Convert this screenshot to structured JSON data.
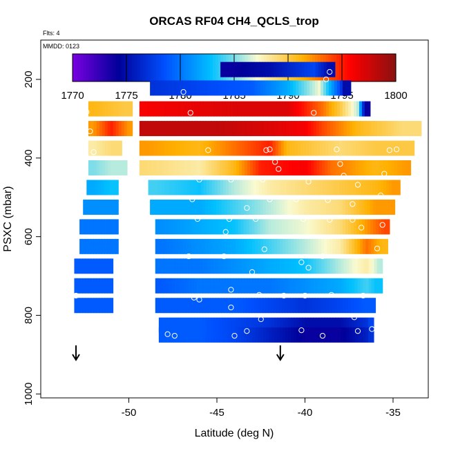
{
  "chart_data": {
    "type": "heatmap",
    "title": "ORCAS RF04 CH4_QCLS_trop",
    "note_flts": "Flts: 4",
    "note_mmdd": "MMDD: 0123",
    "xlabel": "Latitude (deg N)",
    "ylabel": "PSXC (mbar)",
    "xlim": [
      -55,
      -33
    ],
    "ylim": [
      1010,
      100
    ],
    "x_ticks": [
      -50,
      -45,
      -40,
      -35
    ],
    "x_tick_labels": [
      "-50",
      "-45",
      "-40",
      "-35"
    ],
    "y_ticks": [
      200,
      400,
      600,
      800,
      1000
    ],
    "y_tick_labels": [
      "200",
      "400",
      "600",
      "800",
      "1000"
    ],
    "colorbar": {
      "min": 1770,
      "max": 1800,
      "ticks": [
        1770,
        1775,
        1780,
        1785,
        1790,
        1795,
        1800
      ],
      "tick_labels": [
        "1770",
        "1775",
        "1780",
        "1785",
        "1790",
        "1795",
        "1800"
      ],
      "colors": [
        "#7a00e0",
        "#00009a",
        "#0050ff",
        "#00c0ff",
        "#fafad0",
        "#ffb000",
        "#ff0000",
        "#8a1010"
      ]
    },
    "arrows_lat": [
      -53,
      -41.4
    ],
    "rows": [
      {
        "p": 175,
        "segments": [
          [
            -44.2,
            1774
          ],
          [
            -42,
            1775
          ],
          [
            -39.5,
            1778
          ],
          [
            -38.7,
            1775
          ]
        ],
        "x0": -44.8,
        "x1": -38.3
      },
      {
        "p": 222,
        "segments": [
          [
            -48.6,
            1777
          ],
          [
            -46,
            1778
          ],
          [
            -43,
            1779
          ],
          [
            -41,
            1782
          ],
          [
            -39.2,
            1787
          ],
          [
            -38,
            1778
          ],
          [
            -37.8,
            1775
          ]
        ],
        "x0": -48.8,
        "x1": -37.4
      },
      {
        "p": 275,
        "segments": [
          [
            -52,
            1791
          ],
          [
            -50.2,
            1790
          ]
        ],
        "x0": -52.3,
        "x1": -49.8
      },
      {
        "p": 275,
        "segments": [
          [
            -49,
            1796
          ],
          [
            -44,
            1797
          ],
          [
            -41,
            1797
          ],
          [
            -39,
            1793
          ],
          [
            -38,
            1790
          ],
          [
            -37,
            1786
          ],
          [
            -36.6,
            1774
          ]
        ],
        "x0": -49.4,
        "x1": -36.3
      },
      {
        "p": 325,
        "segments": [
          [
            -52,
            1792
          ],
          [
            -51,
            1795
          ],
          [
            -50,
            1792
          ]
        ],
        "x0": -52.3,
        "x1": -49.8
      },
      {
        "p": 325,
        "segments": [
          [
            -49,
            1798
          ],
          [
            -45,
            1798
          ],
          [
            -42,
            1797
          ],
          [
            -40,
            1796
          ],
          [
            -39,
            1794
          ],
          [
            -37,
            1791
          ],
          [
            -34.5,
            1789
          ],
          [
            -33.6,
            1789
          ]
        ],
        "x0": -49.4,
        "x1": -33.4
      },
      {
        "p": 375,
        "segments": [
          [
            -52,
            1788
          ],
          [
            -51,
            1789
          ],
          [
            -50.8,
            1789
          ]
        ],
        "x0": -52.3,
        "x1": -50.4
      },
      {
        "p": 375,
        "segments": [
          [
            -49,
            1792
          ],
          [
            -46,
            1791
          ],
          [
            -44,
            1793
          ],
          [
            -42,
            1795
          ],
          [
            -41,
            1791
          ],
          [
            -38,
            1789
          ],
          [
            -36,
            1790
          ],
          [
            -34,
            1790
          ]
        ],
        "x0": -49.4,
        "x1": -33.8
      },
      {
        "p": 425,
        "segments": [
          [
            -52,
            1785
          ],
          [
            -51,
            1786
          ],
          [
            -50.5,
            1786
          ]
        ],
        "x0": -52.3,
        "x1": -50.1
      },
      {
        "p": 425,
        "segments": [
          [
            -49,
            1789
          ],
          [
            -46,
            1788
          ],
          [
            -44,
            1791
          ],
          [
            -42.5,
            1795
          ],
          [
            -40,
            1796
          ],
          [
            -38.5,
            1793
          ],
          [
            -36,
            1791
          ],
          [
            -34.3,
            1792
          ]
        ],
        "x0": -49.4,
        "x1": -34.0
      },
      {
        "p": 475,
        "segments": [
          [
            -52,
            1782
          ],
          [
            -51,
            1783
          ],
          [
            -50.8,
            1783
          ]
        ],
        "x0": -52.4,
        "x1": -50.6
      },
      {
        "p": 475,
        "segments": [
          [
            -48.5,
            1784
          ],
          [
            -46,
            1783
          ],
          [
            -44,
            1786
          ],
          [
            -42,
            1788
          ],
          [
            -40,
            1789
          ],
          [
            -38,
            1790
          ],
          [
            -36,
            1791
          ],
          [
            -35,
            1792
          ]
        ],
        "x0": -48.9,
        "x1": -34.6
      },
      {
        "p": 525,
        "segments": [
          [
            -52,
            1781
          ],
          [
            -51,
            1781
          ],
          [
            -50.8,
            1781
          ]
        ],
        "x0": -52.6,
        "x1": -50.6
      },
      {
        "p": 525,
        "segments": [
          [
            -48.5,
            1782
          ],
          [
            -46,
            1782
          ],
          [
            -44,
            1784
          ],
          [
            -42,
            1786
          ],
          [
            -40,
            1788
          ],
          [
            -38,
            1789
          ],
          [
            -36,
            1792
          ],
          [
            -35.2,
            1792
          ]
        ],
        "x0": -48.8,
        "x1": -34.9
      },
      {
        "p": 575,
        "segments": [
          [
            -52,
            1780
          ],
          [
            -51,
            1780
          ],
          [
            -50.8,
            1780
          ]
        ],
        "x0": -52.8,
        "x1": -50.6
      },
      {
        "p": 575,
        "segments": [
          [
            -48,
            1781
          ],
          [
            -46,
            1782
          ],
          [
            -44,
            1783
          ],
          [
            -42,
            1786
          ],
          [
            -40,
            1787
          ],
          [
            -38,
            1789
          ],
          [
            -36,
            1793
          ],
          [
            -35.5,
            1794
          ]
        ],
        "x0": -48.5,
        "x1": -35.2
      },
      {
        "p": 625,
        "segments": [
          [
            -52,
            1780
          ],
          [
            -51,
            1780
          ],
          [
            -50.8,
            1780
          ]
        ],
        "x0": -52.8,
        "x1": -50.6
      },
      {
        "p": 625,
        "segments": [
          [
            -48,
            1780
          ],
          [
            -46,
            1781
          ],
          [
            -44,
            1782
          ],
          [
            -42,
            1784
          ],
          [
            -40,
            1786
          ],
          [
            -38,
            1788
          ],
          [
            -36.5,
            1793
          ],
          [
            -35.6,
            1791
          ]
        ],
        "x0": -48.5,
        "x1": -35.3
      },
      {
        "p": 675,
        "segments": [
          [
            -52.5,
            1779
          ],
          [
            -51.5,
            1779
          ],
          [
            -51,
            1779
          ]
        ],
        "x0": -53.1,
        "x1": -50.9
      },
      {
        "p": 675,
        "segments": [
          [
            -48,
            1780
          ],
          [
            -46,
            1780
          ],
          [
            -44,
            1781
          ],
          [
            -42,
            1782
          ],
          [
            -40,
            1783
          ],
          [
            -38,
            1786
          ],
          [
            -36.5,
            1788
          ],
          [
            -35.8,
            1786
          ]
        ],
        "x0": -48.5,
        "x1": -35.6
      },
      {
        "p": 725,
        "segments": [
          [
            -52.5,
            1779
          ],
          [
            -51.5,
            1779
          ],
          [
            -51,
            1779
          ]
        ],
        "x0": -53.1,
        "x1": -50.9
      },
      {
        "p": 725,
        "segments": [
          [
            -48,
            1779
          ],
          [
            -46,
            1780
          ],
          [
            -44,
            1780
          ],
          [
            -42,
            1780
          ],
          [
            -40,
            1781
          ],
          [
            -38,
            1782
          ],
          [
            -36.5,
            1784
          ],
          [
            -36,
            1783
          ]
        ],
        "x0": -48.5,
        "x1": -35.6
      },
      {
        "p": 775,
        "segments": [
          [
            -52.5,
            1779
          ],
          [
            -51.5,
            1779
          ],
          [
            -51,
            1779
          ]
        ],
        "x0": -53.1,
        "x1": -50.9
      },
      {
        "p": 775,
        "segments": [
          [
            -48,
            1779
          ],
          [
            -46,
            1779
          ],
          [
            -44,
            1779
          ],
          [
            -42,
            1778
          ],
          [
            -40,
            1777
          ],
          [
            -38,
            1778
          ],
          [
            -36.5,
            1779
          ],
          [
            -36.1,
            1779
          ]
        ],
        "x0": -48.5,
        "x1": -36.0
      },
      {
        "p": 825,
        "segments": [
          [
            -48,
            1779
          ],
          [
            -46,
            1779
          ],
          [
            -44,
            1778
          ],
          [
            -42,
            1777
          ],
          [
            -40,
            1775
          ],
          [
            -38,
            1775
          ],
          [
            -36.5,
            1777
          ],
          [
            -36.3,
            1778
          ]
        ],
        "x0": -48.3,
        "x1": -36.1
      },
      {
        "p": 850,
        "segments": [
          [
            -48,
            1779
          ],
          [
            -46,
            1779
          ],
          [
            -44,
            1778
          ],
          [
            -42,
            1776
          ],
          [
            -40,
            1774
          ],
          [
            -38,
            1774
          ],
          [
            -36.5,
            1776
          ],
          [
            -36.3,
            1777
          ]
        ],
        "x0": -48.3,
        "x1": -36.1
      }
    ],
    "obs_points": [
      [
        -52.4,
        283
      ],
      [
        -52.2,
        332
      ],
      [
        -52.0,
        385
      ],
      [
        -46.9,
        232
      ],
      [
        -46.5,
        285
      ],
      [
        -38.8,
        200
      ],
      [
        -38.6,
        181
      ],
      [
        -39.5,
        285
      ],
      [
        -45.5,
        380
      ],
      [
        -42.2,
        380
      ],
      [
        -42.0,
        378
      ],
      [
        -41.7,
        410
      ],
      [
        -41.5,
        428
      ],
      [
        -38.2,
        378
      ],
      [
        -38.0,
        415
      ],
      [
        -37.8,
        445
      ],
      [
        -35.2,
        380
      ],
      [
        -34.8,
        378
      ],
      [
        -35.5,
        440
      ],
      [
        -46.0,
        455
      ],
      [
        -44.2,
        455
      ],
      [
        -42.4,
        455
      ],
      [
        -39.8,
        460
      ],
      [
        -37.0,
        468
      ],
      [
        -46.4,
        505
      ],
      [
        -43.3,
        527
      ],
      [
        -42.0,
        505
      ],
      [
        -40.5,
        505
      ],
      [
        -38.7,
        507
      ],
      [
        -37.3,
        517
      ],
      [
        -35.7,
        495
      ],
      [
        -46.1,
        555
      ],
      [
        -44.3,
        555
      ],
      [
        -42.8,
        555
      ],
      [
        -40.1,
        555
      ],
      [
        -38.6,
        557
      ],
      [
        -37.3,
        557
      ],
      [
        -35.6,
        570
      ],
      [
        -44.5,
        588
      ],
      [
        -36.8,
        577
      ],
      [
        -53.2,
        625
      ],
      [
        -46.6,
        650
      ],
      [
        -44.6,
        650
      ],
      [
        -42.3,
        632
      ],
      [
        -40.2,
        665
      ],
      [
        -39.8,
        679
      ],
      [
        -39.0,
        650
      ],
      [
        -35.9,
        630
      ],
      [
        -53.3,
        670
      ],
      [
        -43.0,
        690
      ],
      [
        -46.3,
        755
      ],
      [
        -46.0,
        760
      ],
      [
        -44.2,
        735
      ],
      [
        -42.6,
        748
      ],
      [
        -41.2,
        750
      ],
      [
        -40.0,
        750
      ],
      [
        -38.5,
        748
      ],
      [
        -36.7,
        750
      ],
      [
        -53.0,
        750
      ],
      [
        -44.2,
        780
      ],
      [
        -42.5,
        810
      ],
      [
        -37.2,
        805
      ],
      [
        -47.8,
        848
      ],
      [
        -47.4,
        852
      ],
      [
        -44.0,
        852
      ],
      [
        -43.3,
        840
      ],
      [
        -40.2,
        838
      ],
      [
        -39.0,
        852
      ],
      [
        -37.0,
        840
      ],
      [
        -36.2,
        835
      ]
    ]
  }
}
